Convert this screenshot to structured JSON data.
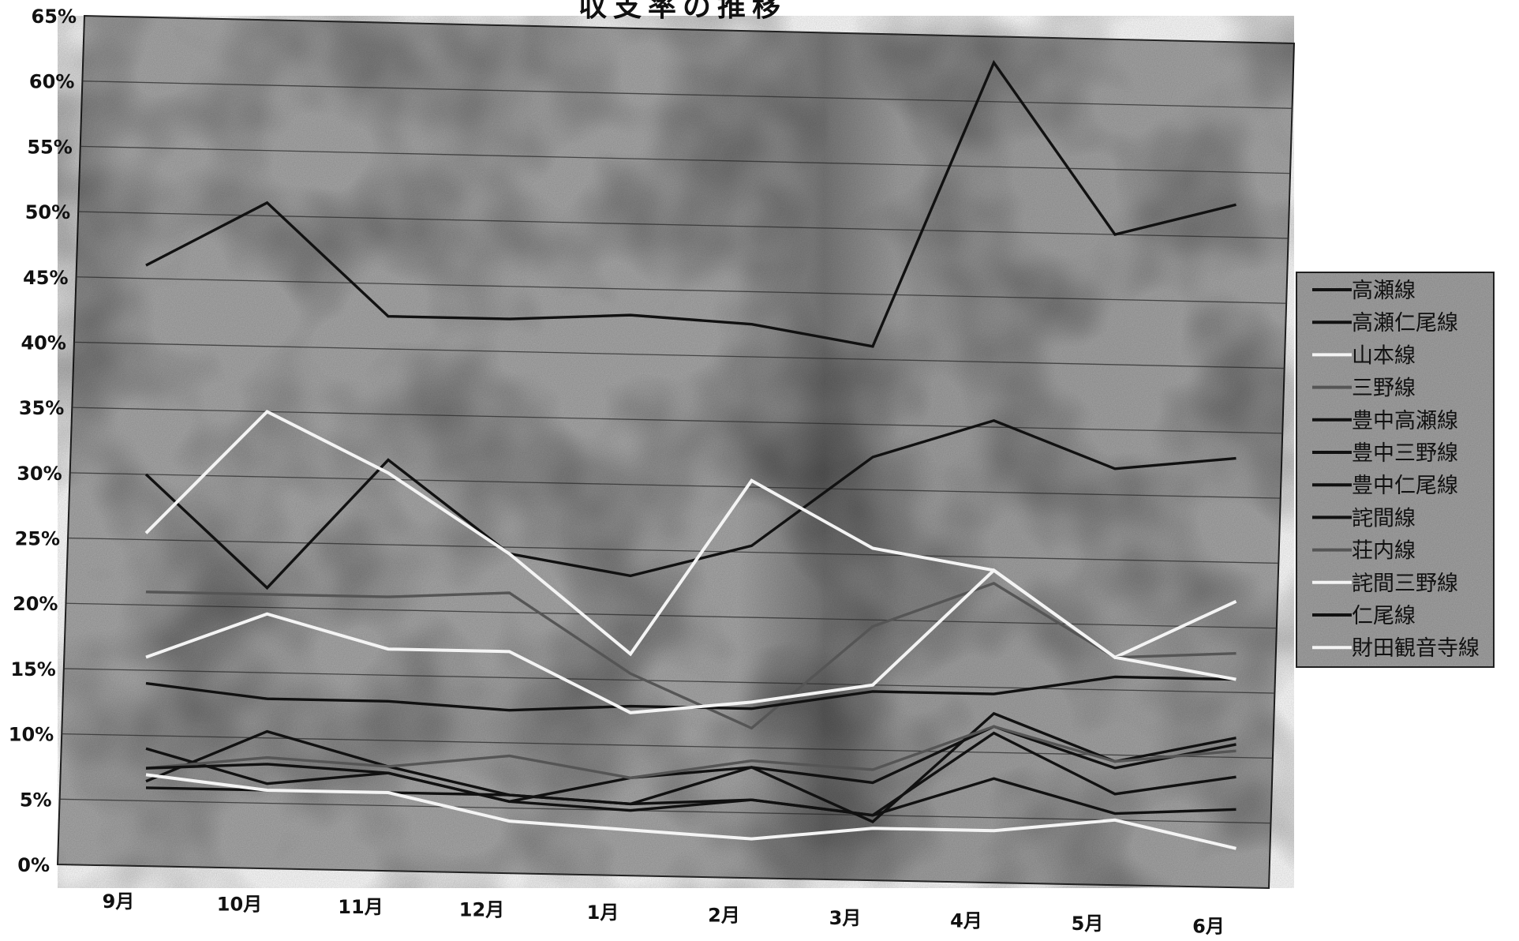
{
  "chart_data": {
    "type": "line",
    "title": "収支率の推移",
    "categories": [
      "9月",
      "10月",
      "11月",
      "12月",
      "1月",
      "2月",
      "3月",
      "4月",
      "5月",
      "6月"
    ],
    "yticks": [
      "0%",
      "5%",
      "10%",
      "15%",
      "20%",
      "25%",
      "30%",
      "35%",
      "40%",
      "45%",
      "50%",
      "55%",
      "60%",
      "65%"
    ],
    "ylim": [
      0,
      65
    ],
    "grid": true,
    "legend_position": "right",
    "series": [
      {
        "name": "高瀬線",
        "color": "#111111",
        "values": [
          46,
          51,
          42.5,
          42.5,
          43,
          42.5,
          41,
          63,
          50,
          52.5
        ]
      },
      {
        "name": "高瀬仁尾線",
        "color": "#111111",
        "values": [
          30,
          21.5,
          31.5,
          24.5,
          23,
          25.5,
          32.5,
          35.5,
          32,
          33
        ]
      },
      {
        "name": "山本線",
        "color": "#f4f4f4",
        "values": [
          25.5,
          35,
          30.5,
          24.5,
          17,
          30.5,
          25.5,
          24,
          17.5,
          22
        ]
      },
      {
        "name": "三野線",
        "color": "#555555",
        "values": [
          21,
          21,
          21,
          21.5,
          15.5,
          11.5,
          19.5,
          23,
          17.5,
          18
        ]
      },
      {
        "name": "豊中高瀬線",
        "color": "#111111",
        "values": [
          14,
          13,
          13,
          12.5,
          13,
          13,
          14.5,
          14.5,
          16,
          16
        ]
      },
      {
        "name": "豊中三野線",
        "color": "#111111",
        "values": [
          6.5,
          10.5,
          8,
          6,
          5.5,
          8.5,
          4.5,
          13,
          9.5,
          11.5
        ]
      },
      {
        "name": "豊中仁尾線",
        "color": "#111111",
        "values": [
          9,
          6.5,
          7.5,
          5.5,
          7.5,
          8.5,
          7.5,
          12,
          9,
          11
        ]
      },
      {
        "name": "詫間線",
        "color": "#111111",
        "values": [
          6,
          6,
          6,
          6,
          5.5,
          6,
          5,
          11.5,
          7,
          8.5
        ]
      },
      {
        "name": "荘内線",
        "color": "#555555",
        "values": [
          7.5,
          8.5,
          8,
          9,
          7.5,
          9,
          8.5,
          12,
          9.5,
          10.5
        ]
      },
      {
        "name": "詫間三野線",
        "color": "#f4f4f4",
        "values": [
          16,
          19.5,
          17,
          17,
          12.5,
          13.5,
          15,
          24,
          17.5,
          16
        ]
      },
      {
        "name": "仁尾線",
        "color": "#111111",
        "values": [
          7.5,
          8,
          7.5,
          5.5,
          5,
          6,
          5,
          8,
          5.5,
          6
        ]
      },
      {
        "name": "財田観音寺線",
        "color": "#f4f4f4",
        "values": [
          7,
          6,
          6,
          4,
          3.5,
          3,
          4,
          4,
          5,
          3
        ]
      }
    ]
  }
}
